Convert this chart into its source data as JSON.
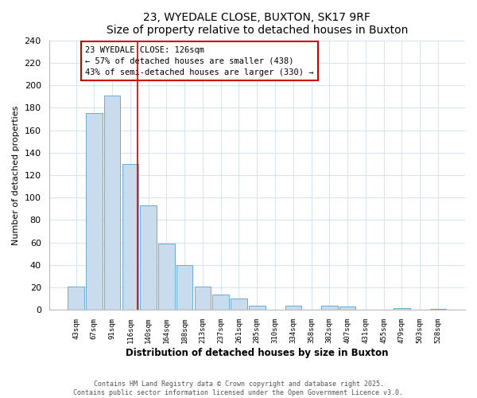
{
  "title": "23, WYEDALE CLOSE, BUXTON, SK17 9RF",
  "subtitle": "Size of property relative to detached houses in Buxton",
  "xlabel": "Distribution of detached houses by size in Buxton",
  "ylabel": "Number of detached properties",
  "bar_labels": [
    "43sqm",
    "67sqm",
    "91sqm",
    "116sqm",
    "140sqm",
    "164sqm",
    "188sqm",
    "213sqm",
    "237sqm",
    "261sqm",
    "285sqm",
    "310sqm",
    "334sqm",
    "358sqm",
    "382sqm",
    "407sqm",
    "431sqm",
    "455sqm",
    "479sqm",
    "503sqm",
    "528sqm"
  ],
  "bar_values": [
    21,
    175,
    191,
    130,
    93,
    59,
    40,
    21,
    14,
    10,
    4,
    0,
    4,
    0,
    4,
    3,
    0,
    0,
    2,
    0,
    1
  ],
  "bar_color": "#c8dcee",
  "bar_edge_color": "#6aaad4",
  "ylim": [
    0,
    240
  ],
  "yticks": [
    0,
    20,
    40,
    60,
    80,
    100,
    120,
    140,
    160,
    180,
    200,
    220,
    240
  ],
  "vline_color": "#cc0000",
  "vline_x": 3.42,
  "annotation_title": "23 WYEDALE CLOSE: 126sqm",
  "annotation_line1": "← 57% of detached houses are smaller (438)",
  "annotation_line2": "43% of semi-detached houses are larger (330) →",
  "footer_line1": "Contains HM Land Registry data © Crown copyright and database right 2025.",
  "footer_line2": "Contains public sector information licensed under the Open Government Licence v3.0.",
  "background_color": "#ffffff",
  "grid_color": "#d8e4f0"
}
